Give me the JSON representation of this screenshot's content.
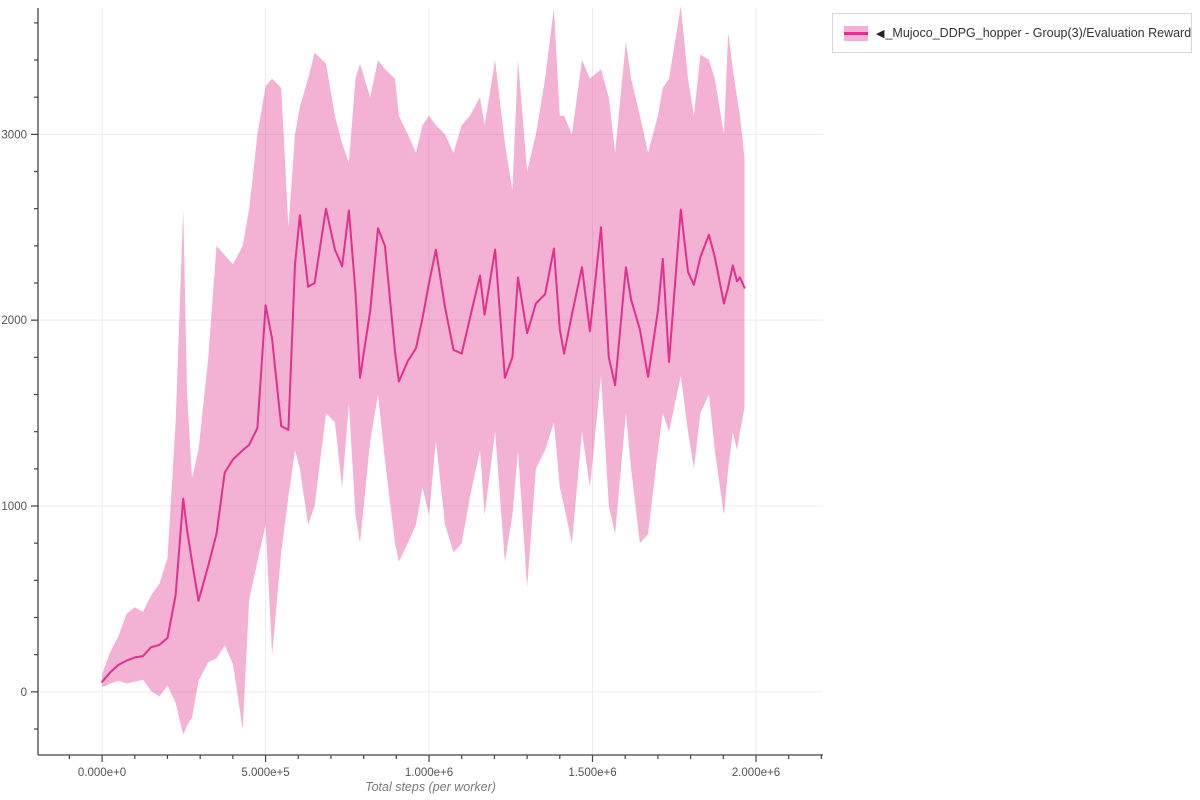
{
  "window": {
    "background": "#ffffff"
  },
  "legend": {
    "collapse_icon": "◀",
    "label": "_Mujoco_DDPG_hopper - Group(3)/Evaluation Reward"
  },
  "colors": {
    "line": "#e0318e",
    "band": "rgba(224,49,142,0.38)",
    "grid": "#ececec",
    "axis": "#444444",
    "tick_label": "#545454",
    "axis_title": "#7a7a7a",
    "legend_border": "#d8d8d8",
    "legend_text": "#333333"
  },
  "chart_data": {
    "type": "line",
    "title": "",
    "xlabel": "Total steps (per worker)",
    "ylabel": "",
    "legend_position": "top-right",
    "grid": true,
    "xlim": [
      -196000,
      2205000
    ],
    "ylim": [
      -340,
      3680
    ],
    "x_tick_values": [
      0,
      500000,
      1000000,
      1500000,
      2000000
    ],
    "x_tick_labels": [
      "0.000e+0",
      "5.000e+5",
      "1.000e+6",
      "1.500e+6",
      "2.000e+6"
    ],
    "y_tick_values": [
      0,
      1000,
      2000,
      3000
    ],
    "y_tick_labels": [
      "0",
      "1000",
      "2000",
      "3000"
    ],
    "x_minor_step": 100000,
    "y_minor_step": 200,
    "series": [
      {
        "name": "_Mujoco_DDPG_hopper - Group(3)/Evaluation Reward",
        "color": "#e0318e",
        "band_color": "rgba(224,49,142,0.38)",
        "x": [
          0,
          25000,
          50000,
          75000,
          100000,
          125000,
          150000,
          175000,
          200000,
          225000,
          248000,
          260000,
          275000,
          295000,
          325000,
          350000,
          375000,
          400000,
          430000,
          450000,
          475000,
          500000,
          520000,
          548000,
          570000,
          590000,
          605000,
          630000,
          650000,
          685000,
          712000,
          734000,
          755000,
          775000,
          789000,
          820000,
          844000,
          865000,
          896000,
          908000,
          935000,
          960000,
          980000,
          1000000,
          1021000,
          1049000,
          1075000,
          1100000,
          1125000,
          1156000,
          1170000,
          1202000,
          1232000,
          1255000,
          1272000,
          1300000,
          1327000,
          1355000,
          1382000,
          1400000,
          1413000,
          1437000,
          1468000,
          1492000,
          1526000,
          1550000,
          1569000,
          1602000,
          1618000,
          1645000,
          1670000,
          1700000,
          1715000,
          1734000,
          1770000,
          1792000,
          1810000,
          1830000,
          1856000,
          1874000,
          1902000,
          1915000,
          1929000,
          1942000,
          1951000,
          1965000
        ],
        "mean": [
          54,
          105,
          145,
          168,
          185,
          192,
          240,
          252,
          290,
          520,
          1040,
          870,
          700,
          490,
          680,
          850,
          1180,
          1250,
          1300,
          1330,
          1420,
          2080,
          1900,
          1430,
          1410,
          2300,
          2565,
          2180,
          2200,
          2600,
          2380,
          2290,
          2590,
          2150,
          1690,
          2050,
          2495,
          2400,
          1830,
          1670,
          1780,
          1850,
          2010,
          2200,
          2380,
          2070,
          1840,
          1820,
          2010,
          2240,
          2030,
          2380,
          1690,
          1800,
          2230,
          1930,
          2090,
          2140,
          2385,
          1950,
          1820,
          2030,
          2285,
          1940,
          2500,
          1800,
          1650,
          2285,
          2110,
          1950,
          1695,
          2050,
          2330,
          1775,
          2595,
          2260,
          2190,
          2340,
          2460,
          2340,
          2090,
          2180,
          2295,
          2210,
          2230,
          2175
        ],
        "band_lower": [
          25,
          45,
          60,
          45,
          55,
          65,
          5,
          -25,
          35,
          -60,
          -230,
          -180,
          -140,
          60,
          160,
          180,
          250,
          150,
          -200,
          500,
          700,
          900,
          200,
          750,
          1050,
          1300,
          1200,
          900,
          1000,
          1500,
          1450,
          1100,
          1550,
          950,
          800,
          1350,
          1600,
          1250,
          800,
          700,
          800,
          900,
          1100,
          950,
          1350,
          900,
          750,
          800,
          1050,
          1300,
          950,
          1400,
          700,
          950,
          1300,
          560,
          1200,
          1300,
          1450,
          1100,
          1000,
          800,
          1400,
          1100,
          1700,
          1000,
          850,
          1500,
          1200,
          800,
          850,
          1300,
          1500,
          1400,
          1700,
          1400,
          1200,
          1500,
          1600,
          1300,
          950,
          1200,
          1400,
          1300,
          1400,
          1530
        ],
        "band_upper": [
          95,
          215,
          300,
          420,
          455,
          430,
          520,
          580,
          720,
          1450,
          2600,
          1600,
          1150,
          1300,
          1800,
          2400,
          2350,
          2300,
          2400,
          2600,
          3000,
          3260,
          3300,
          3250,
          2500,
          3000,
          3150,
          3300,
          3440,
          3380,
          3100,
          2950,
          2850,
          3300,
          3380,
          3200,
          3400,
          3350,
          3300,
          3100,
          3000,
          2900,
          3050,
          3100,
          3050,
          3000,
          2900,
          3050,
          3100,
          3200,
          3050,
          3400,
          2950,
          2700,
          3400,
          2800,
          3000,
          3300,
          3680,
          3100,
          3100,
          3000,
          3400,
          3300,
          3350,
          3200,
          2900,
          3500,
          3300,
          3100,
          2900,
          3100,
          3250,
          3300,
          3690,
          3300,
          3100,
          3430,
          3400,
          3300,
          3000,
          3550,
          3350,
          3200,
          3100,
          2870
        ]
      }
    ]
  }
}
